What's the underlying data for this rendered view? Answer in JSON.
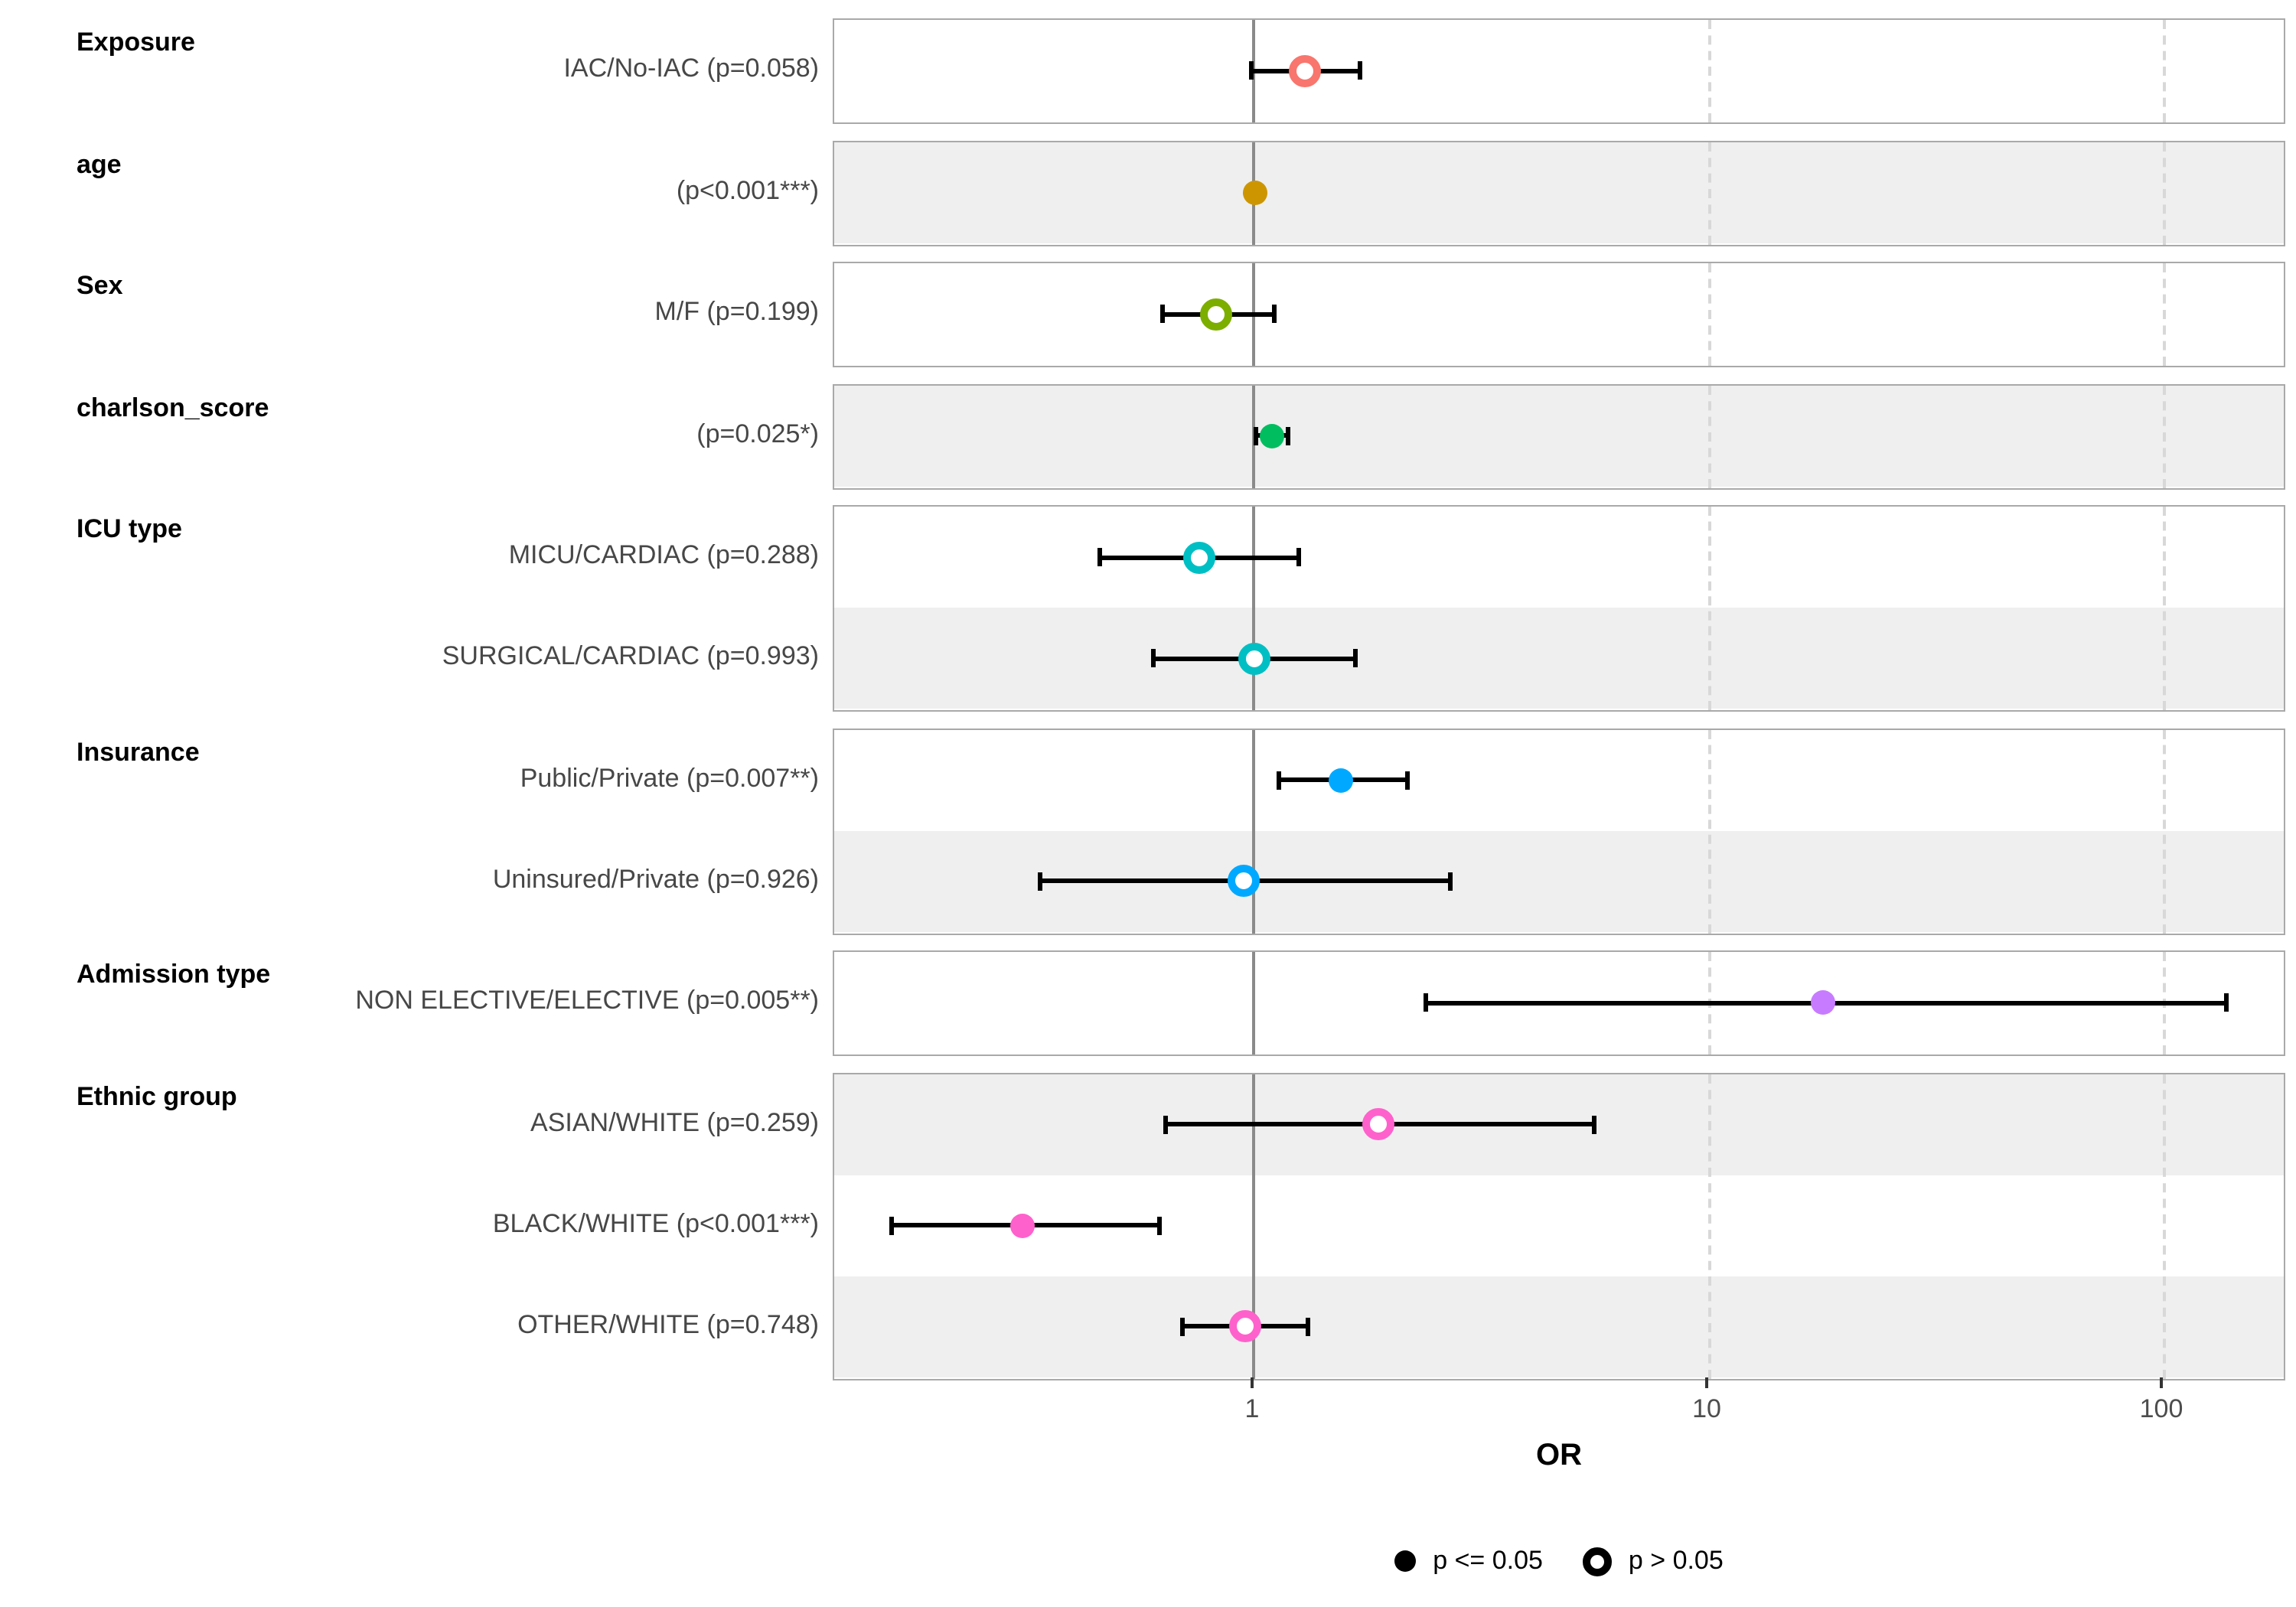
{
  "chart_data": {
    "type": "scatter",
    "subtype": "forest-plot",
    "title": "",
    "xlabel": "OR",
    "x_scale": "log10",
    "x_ticks": [
      1,
      10,
      100
    ],
    "x_tick_labels": [
      "1",
      "10",
      "100"
    ],
    "x_range": [
      0.12,
      190
    ],
    "reference_line": 1,
    "dashed_gridlines": [
      10,
      100
    ],
    "grid": "dashed-verticals-only",
    "legend": {
      "position": "bottom",
      "items": [
        {
          "marker": "filled-dot",
          "label": "p <= 0.05"
        },
        {
          "marker": "open-dot",
          "label": "p > 0.05"
        }
      ]
    },
    "groups": [
      {
        "title": "Exposure",
        "color": "#F8766D",
        "rows": [
          {
            "label": "IAC/No-IAC (p=0.058)",
            "or": 1.3,
            "ci_low": 0.99,
            "ci_high": 1.71,
            "significant": false
          }
        ]
      },
      {
        "title": "age",
        "color": "#CD9600",
        "rows": [
          {
            "label": "(p<0.001***)",
            "or": 1.01,
            "ci_low": 0.99,
            "ci_high": 1.02,
            "significant": true
          }
        ]
      },
      {
        "title": "Sex",
        "color": "#7CAE00",
        "rows": [
          {
            "label": "M/F (p=0.199)",
            "or": 0.83,
            "ci_low": 0.63,
            "ci_high": 1.11,
            "significant": false
          }
        ]
      },
      {
        "title": "charlson_score",
        "color": "#00BD5F",
        "rows": [
          {
            "label": "(p=0.025*)",
            "or": 1.1,
            "ci_low": 1.01,
            "ci_high": 1.19,
            "significant": true
          }
        ]
      },
      {
        "title": "ICU type",
        "color": "#00BFC4",
        "rows": [
          {
            "label": "MICU/CARDIAC (p=0.288)",
            "or": 0.76,
            "ci_low": 0.46,
            "ci_high": 1.26,
            "significant": false
          },
          {
            "label": "SURGICAL/CARDIAC (p=0.993)",
            "or": 1.0,
            "ci_low": 0.6,
            "ci_high": 1.68,
            "significant": false
          }
        ]
      },
      {
        "title": "Insurance",
        "color": "#00A9FF",
        "rows": [
          {
            "label": "Public/Private (p=0.007**)",
            "or": 1.56,
            "ci_low": 1.14,
            "ci_high": 2.18,
            "significant": true
          },
          {
            "label": "Uninsured/Private (p=0.926)",
            "or": 0.95,
            "ci_low": 0.34,
            "ci_high": 2.7,
            "significant": false
          }
        ]
      },
      {
        "title": "Admission type",
        "color": "#C77CFF",
        "rows": [
          {
            "label": "NON ELECTIVE/ELECTIVE (p=0.005**)",
            "or": 17.9,
            "ci_low": 2.4,
            "ci_high": 138,
            "significant": true
          }
        ]
      },
      {
        "title": "Ethnic group",
        "color": "#FF61CC",
        "rows": [
          {
            "label": "ASIAN/WHITE (p=0.259)",
            "or": 1.88,
            "ci_low": 0.64,
            "ci_high": 5.6,
            "significant": false
          },
          {
            "label": "BLACK/WHITE (p<0.001***)",
            "or": 0.31,
            "ci_low": 0.16,
            "ci_high": 0.62,
            "significant": true
          },
          {
            "label": "OTHER/WHITE (p=0.748)",
            "or": 0.96,
            "ci_low": 0.7,
            "ci_high": 1.32,
            "significant": false
          }
        ]
      }
    ],
    "style": {
      "background": "#FFFFFF",
      "stripe_gray": "#EFEFEF",
      "stripe_white": "#FFFFFF",
      "panel_border": "#A9A9A9",
      "reference_line_color": "#8A8A8A",
      "gridline_color": "#D8D8D8",
      "error_bar_color": "#000000",
      "row_label_color": "#474747",
      "tick_label_color": "#4D4D4D",
      "title_color": "#000000"
    }
  }
}
